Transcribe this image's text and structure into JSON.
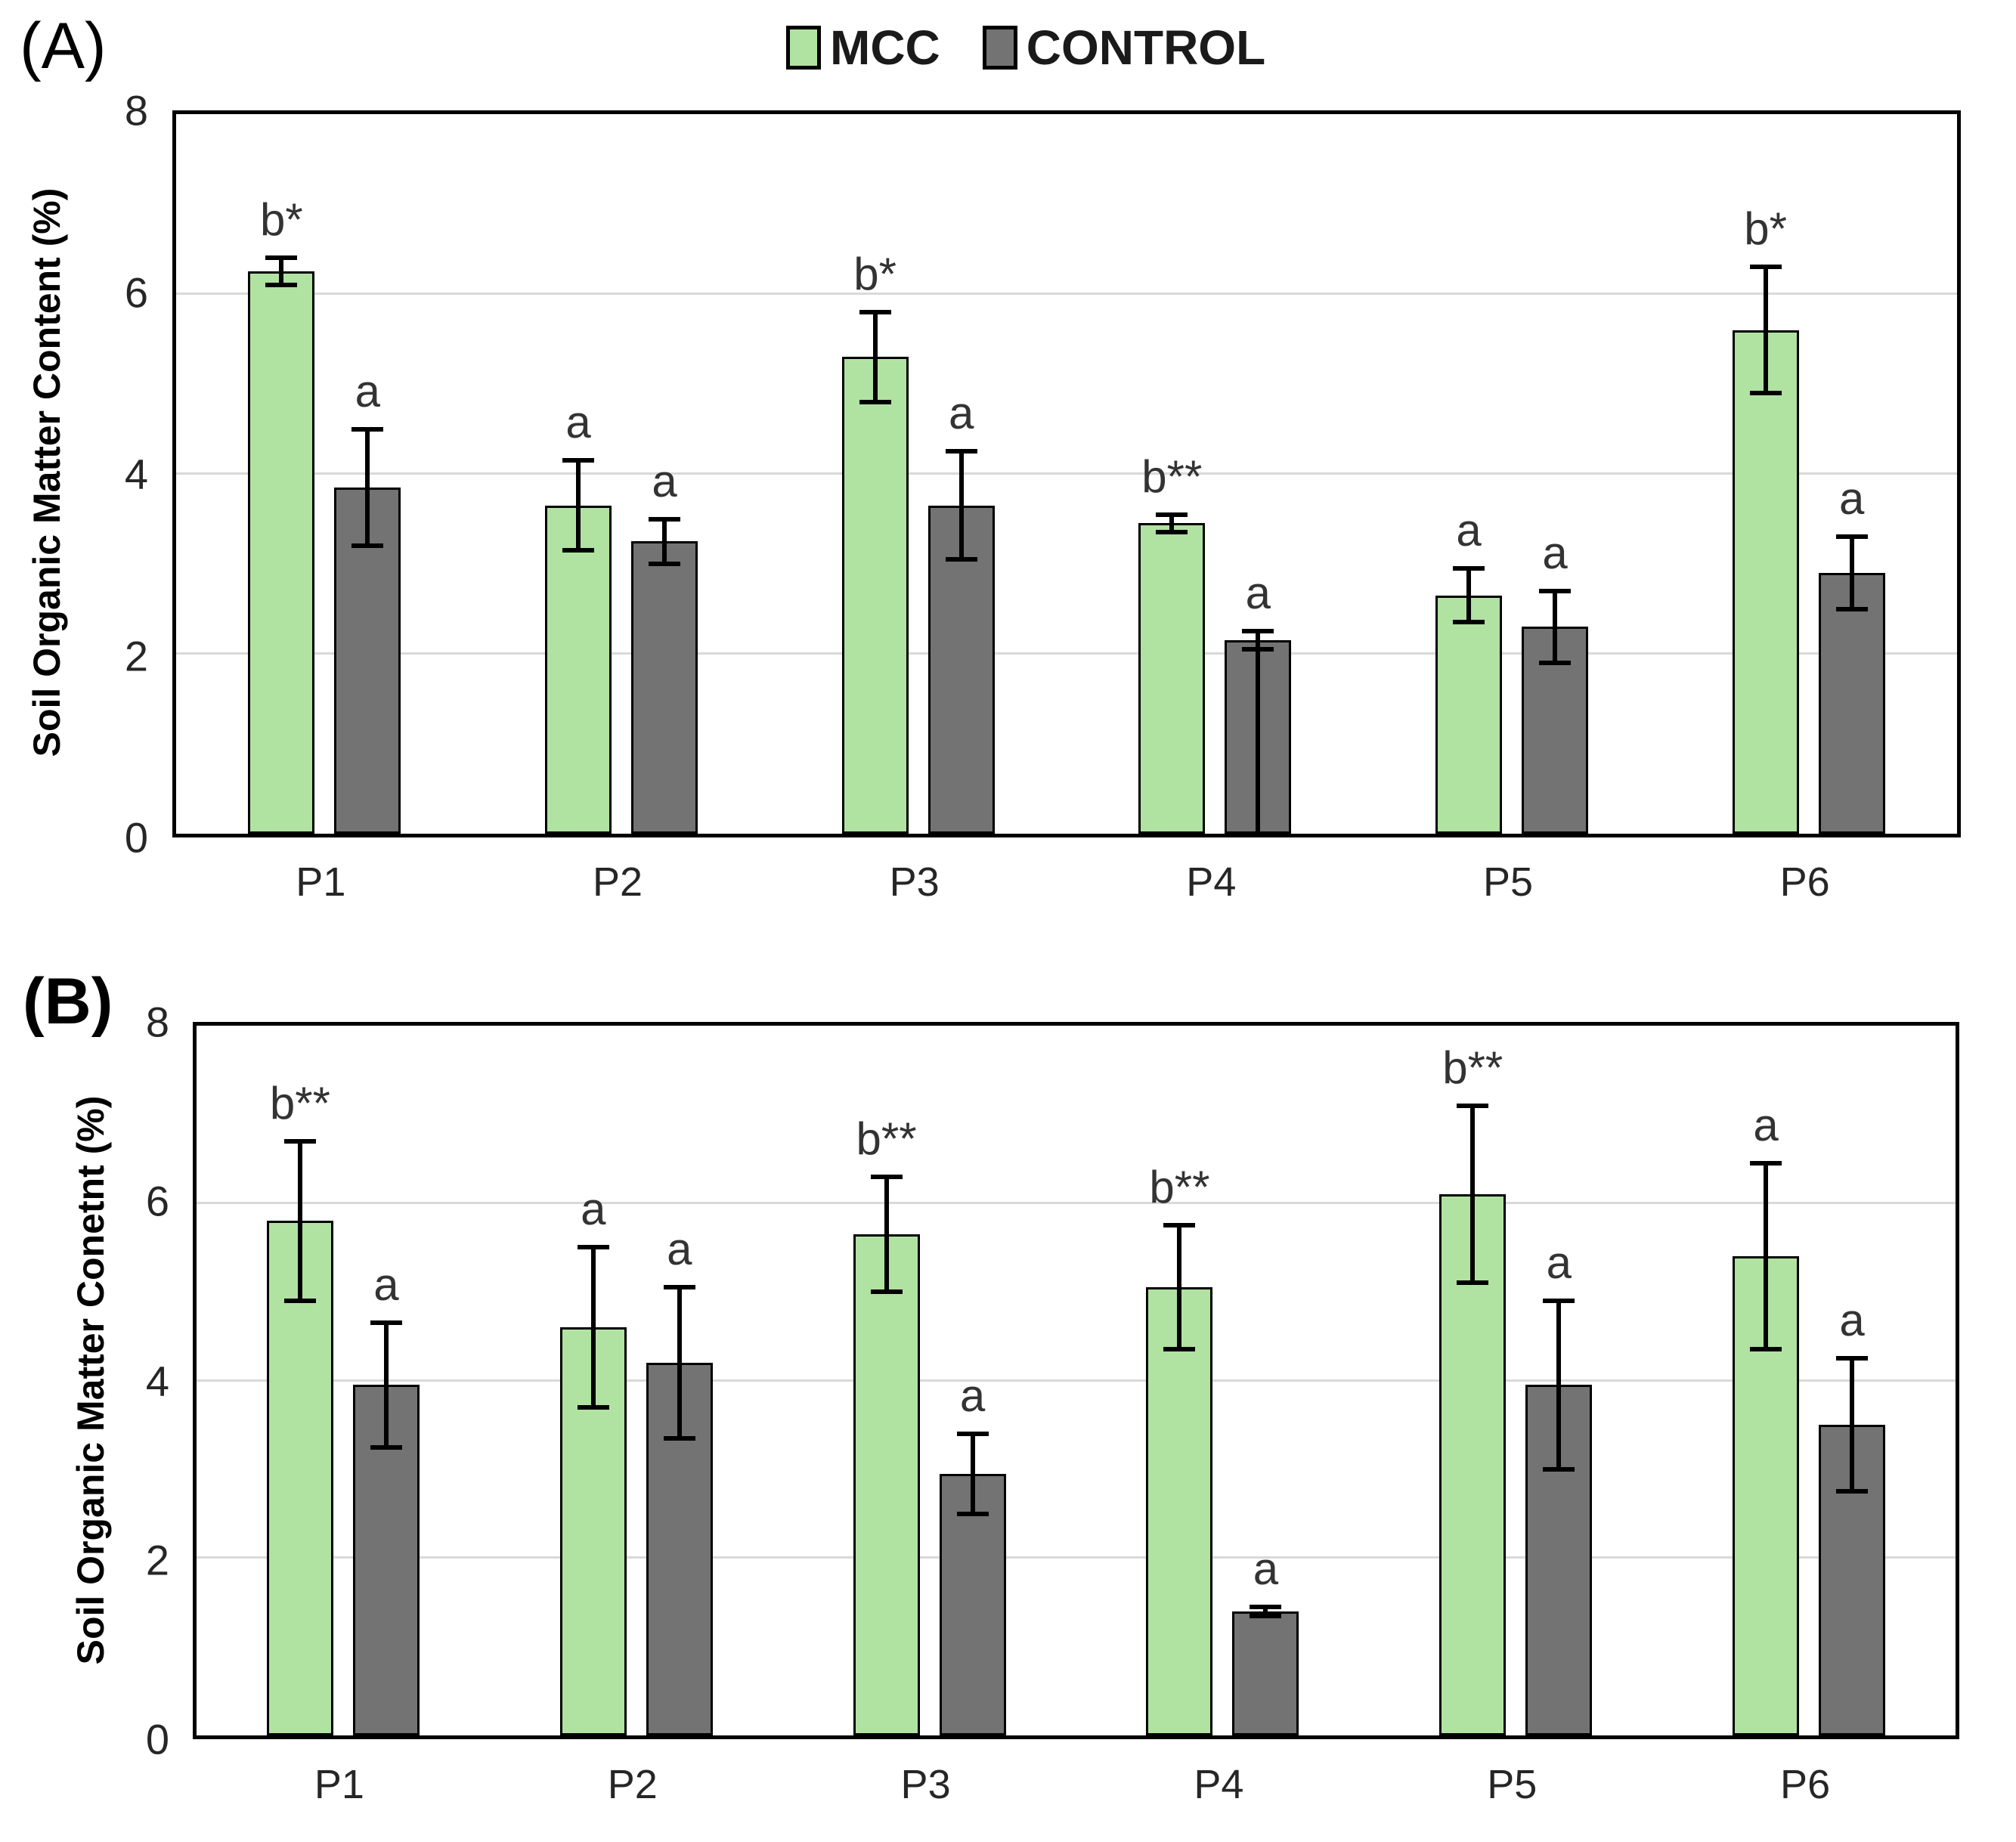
{
  "chart_data": [
    {
      "id": "A",
      "type": "bar",
      "panel_label": "(A)",
      "ylabel": "Soil Organic Matter Content (%)",
      "ylim": [
        0,
        8
      ],
      "yticks": [
        0,
        2,
        4,
        6,
        8
      ],
      "gridlines": [
        2,
        4,
        6
      ],
      "grid": true,
      "legend_position": "top-center",
      "categories": [
        "P1",
        "P2",
        "P3",
        "P4",
        "P5",
        "P6"
      ],
      "series": [
        {
          "name": "MCC",
          "color": "#b0e3a1",
          "values": [
            6.25,
            3.65,
            5.3,
            3.45,
            2.65,
            5.6
          ],
          "errors": [
            0.15,
            0.5,
            0.5,
            0.1,
            0.3,
            0.7
          ],
          "sig_labels": [
            "b*",
            "a",
            "b*",
            "b**",
            "a",
            "b*"
          ],
          "line_through": [
            false,
            false,
            false,
            false,
            false,
            false
          ]
        },
        {
          "name": "CONTROL",
          "color": "#737373",
          "values": [
            3.85,
            3.25,
            3.65,
            2.15,
            2.3,
            2.9
          ],
          "errors": [
            0.65,
            0.25,
            0.6,
            0.1,
            0.4,
            0.4
          ],
          "sig_labels": [
            "a",
            "a",
            "a",
            "a",
            "a",
            "a"
          ],
          "line_through": [
            false,
            false,
            false,
            true,
            false,
            false
          ]
        }
      ]
    },
    {
      "id": "B",
      "type": "bar",
      "panel_label": "(B)",
      "ylabel": "Soil Organic Matter Conetnt (%)",
      "ylim": [
        0,
        8
      ],
      "yticks": [
        0,
        2,
        4,
        6,
        8
      ],
      "gridlines": [
        2,
        4,
        6
      ],
      "grid": true,
      "legend_position": "none",
      "categories": [
        "P1",
        "P2",
        "P3",
        "P4",
        "P5",
        "P6"
      ],
      "series": [
        {
          "name": "MCC",
          "color": "#b0e3a1",
          "values": [
            5.8,
            4.6,
            5.65,
            5.05,
            6.1,
            5.4
          ],
          "errors": [
            0.9,
            0.9,
            0.65,
            0.7,
            1.0,
            1.05
          ],
          "sig_labels": [
            "b**",
            "a",
            "b**",
            "b**",
            "b**",
            "a"
          ],
          "line_through": [
            false,
            false,
            false,
            false,
            false,
            false
          ]
        },
        {
          "name": "CONTROL",
          "color": "#737373",
          "values": [
            3.95,
            4.2,
            2.95,
            1.4,
            3.95,
            3.5
          ],
          "errors": [
            0.7,
            0.85,
            0.45,
            0.05,
            0.95,
            0.75
          ],
          "sig_labels": [
            "a",
            "a",
            "a",
            "a",
            "a",
            "a"
          ],
          "line_through": [
            false,
            false,
            false,
            false,
            false,
            false
          ]
        }
      ]
    }
  ]
}
